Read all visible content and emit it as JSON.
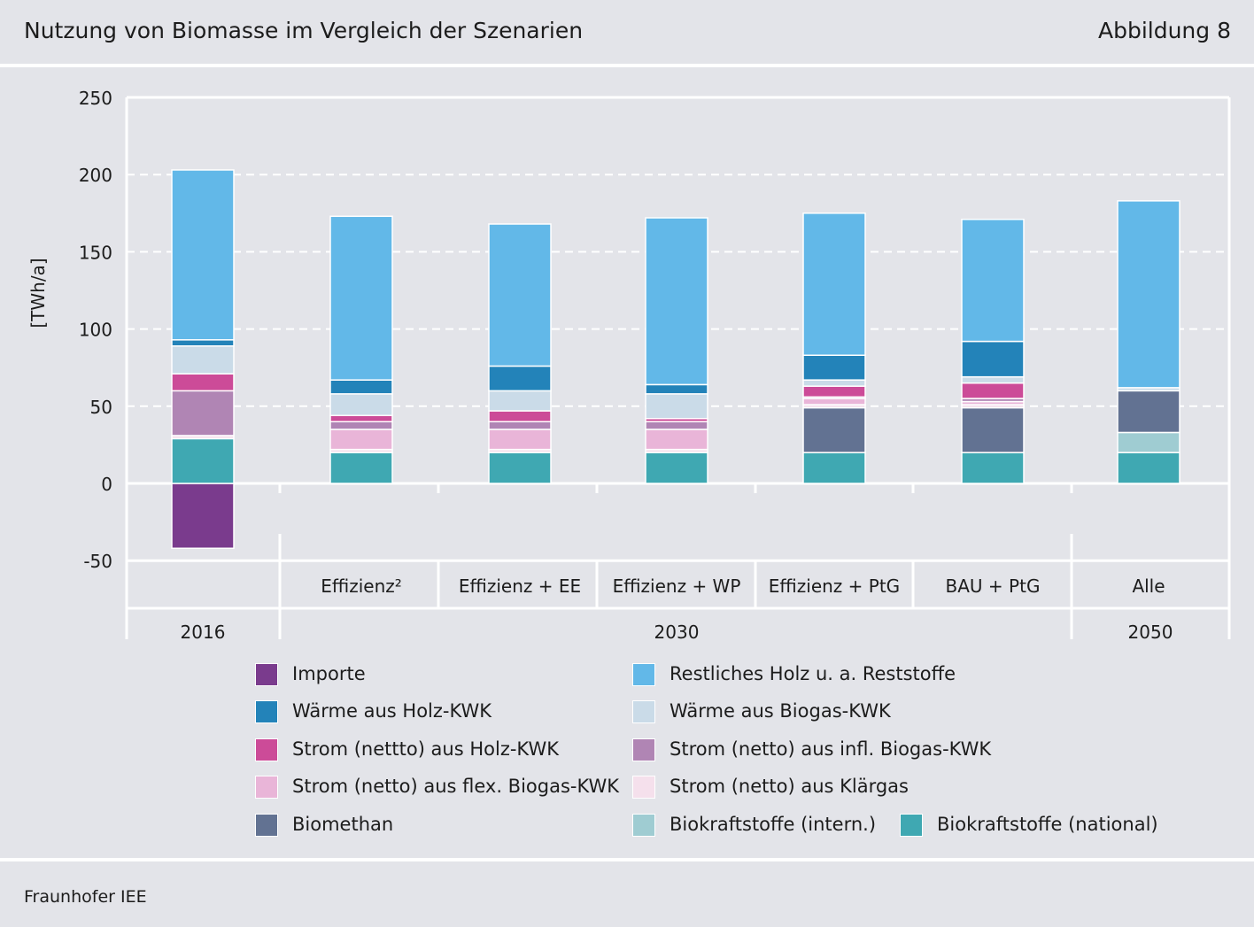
{
  "header": {
    "title": "Nutzung von Biomasse im Vergleich der Szenarien",
    "figure_label": "Abbildung 8"
  },
  "source": "Fraunhofer IEE",
  "chart_data": {
    "type": "bar",
    "stacked": true,
    "title": "Nutzung von Biomasse im Vergleich der Szenarien",
    "ylabel": "[TWh/a]",
    "ylim": [
      -50,
      250
    ],
    "yticks": [
      250,
      200,
      150,
      100,
      50,
      0,
      -50
    ],
    "categories": [
      "2016",
      "Effizienz²",
      "Effizienz + EE",
      "Effizienz + WP",
      "Effizienz + PtG",
      "BAU + PtG",
      "Alle"
    ],
    "category_labels": [
      "",
      "Effizienz²",
      "Effizienz + EE",
      "Effizienz + WP",
      "Effizienz + PtG",
      "BAU + PtG",
      "Alle"
    ],
    "year_groups": [
      {
        "label": "2016",
        "categories": [
          "2016"
        ]
      },
      {
        "label": "2030",
        "categories": [
          "Effizienz²",
          "Effizienz + EE",
          "Effizienz + WP",
          "Effizienz + PtG",
          "BAU + PtG"
        ]
      },
      {
        "label": "2050",
        "categories": [
          "Alle"
        ]
      }
    ],
    "series": [
      {
        "name": "Importe",
        "color": "#7a3b8d",
        "values": [
          -42,
          0,
          0,
          0,
          0,
          0,
          0
        ]
      },
      {
        "name": "Biokraftstoffe (national)",
        "color": "#3fa8b2",
        "values": [
          29,
          20,
          20,
          20,
          20,
          20,
          20
        ]
      },
      {
        "name": "Biokraftstoffe (intern.)",
        "color": "#9fccd2",
        "values": [
          0,
          0,
          0,
          0,
          0,
          0,
          13
        ]
      },
      {
        "name": "Biomethan",
        "color": "#627292",
        "values": [
          0,
          0,
          0,
          0,
          29,
          29,
          27
        ]
      },
      {
        "name": "Strom (netto) aus Klärgas",
        "color": "#f5e0ec",
        "values": [
          2,
          2,
          2,
          2,
          2,
          2,
          0
        ]
      },
      {
        "name": "Strom (netto) aus flex. Biogas-KWK",
        "color": "#e9b5d8",
        "values": [
          0,
          13,
          13,
          13,
          4,
          2,
          0
        ]
      },
      {
        "name": "Strom (netto) aus infl. Biogas-KWK",
        "color": "#b085b4",
        "values": [
          29,
          5,
          5,
          5,
          1,
          2,
          0
        ]
      },
      {
        "name": "Strom (netto) aus Holz-KWK",
        "color": "#cc4b98",
        "values": [
          11,
          4,
          7,
          2,
          7,
          10,
          0
        ]
      },
      {
        "name": "Wärme aus Biogas-KWK",
        "color": "#cadbe8",
        "values": [
          18,
          14,
          13,
          16,
          4,
          4,
          2
        ]
      },
      {
        "name": "Wärme aus Holz-KWK",
        "color": "#2383b9",
        "values": [
          4,
          9,
          16,
          6,
          16,
          23,
          0
        ]
      },
      {
        "name": "Restliches Holz u. a. Reststoffe",
        "color": "#62b8e8",
        "values": [
          110,
          106,
          92,
          108,
          92,
          79,
          121
        ]
      }
    ],
    "grid": true
  },
  "legend": [
    {
      "label": "Importe",
      "color": "#7a3b8d"
    },
    {
      "label": "Wärme aus Holz-KWK",
      "color": "#2383b9"
    },
    {
      "label": "Strom (nettto) aus Holz-KWK",
      "color": "#cc4b98"
    },
    {
      "label": "Strom (netto) aus flex. Biogas-KWK",
      "color": "#e9b5d8"
    },
    {
      "label": "Biomethan",
      "color": "#627292"
    },
    {
      "label": "Restliches Holz u. a. Reststoffe",
      "color": "#62b8e8"
    },
    {
      "label": "Wärme aus Biogas-KWK",
      "color": "#cadbe8"
    },
    {
      "label": "Strom (netto) aus infl. Biogas-KWK",
      "color": "#b085b4"
    },
    {
      "label": "Strom (netto) aus Klärgas",
      "color": "#f5e0ec"
    },
    {
      "label": "Biokraftstoffe (intern.)",
      "color": "#9fccd2"
    },
    {
      "label": "Biokraftstoffe (national)",
      "color": "#3fa8b2"
    }
  ]
}
